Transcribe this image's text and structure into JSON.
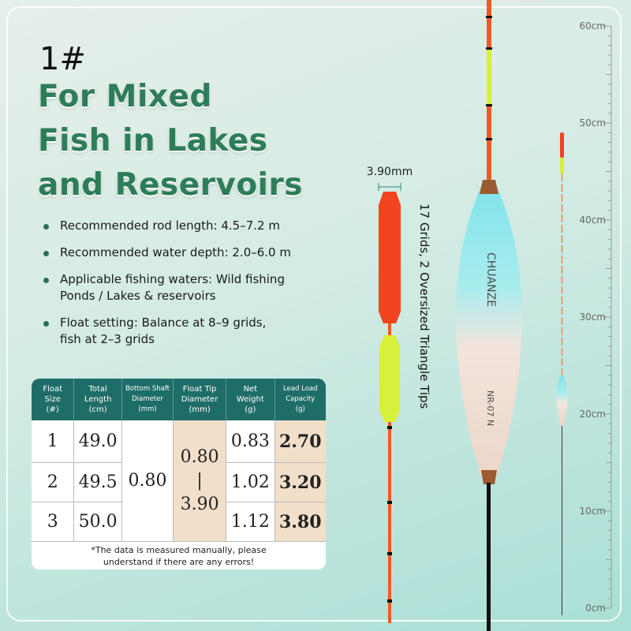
{
  "header": {
    "size": "1#",
    "title": [
      "For Mixed",
      "Fish in Lakes",
      "and Reservoirs"
    ]
  },
  "bullets": [
    [
      "Recommended rod length: 4.5–7.2 m"
    ],
    [
      "Recommended water depth: 2.0–6.0 m"
    ],
    [
      "Applicable fishing waters: Wild fishing",
      "Ponds / Lakes & reservoirs"
    ],
    [
      "Float setting: Balance at 8–9 grids,",
      "fish at 2–3 grids"
    ]
  ],
  "table": {
    "headers": [
      [
        "Float",
        "Size",
        "(#)"
      ],
      [
        "Total",
        "Length",
        "(cm)"
      ],
      [
        "Bottom Shaft",
        "Diameter",
        "(mm)"
      ],
      [
        "Float Tip",
        "Diameter",
        "(mm)"
      ],
      [
        "Net",
        "Weight",
        "(g)"
      ],
      [
        "Lead Load",
        "Capacity",
        "(g)"
      ]
    ],
    "rows": [
      [
        "1",
        "49.0",
        "0.83",
        "2.70"
      ],
      [
        "2",
        "49.5",
        "1.02",
        "3.20"
      ],
      [
        "3",
        "50.0",
        "1.12",
        "3.80"
      ]
    ],
    "shaft_diameter": "0.80",
    "tip_diameter": [
      "0.80",
      "|",
      "3.90"
    ],
    "note": [
      "*The data is measured manually, please",
      "understand if there are any errors!"
    ]
  },
  "diagram": {
    "tip_width": "3.90mm",
    "tip_caption": "17 Grids, 2 Oversized Triangle Tips",
    "brand": "CHUANZE",
    "model": "NR-07 N"
  },
  "ruler": [
    "60cm",
    "50cm",
    "40cm",
    "30cm",
    "20cm",
    "10cm",
    "0cm"
  ]
}
